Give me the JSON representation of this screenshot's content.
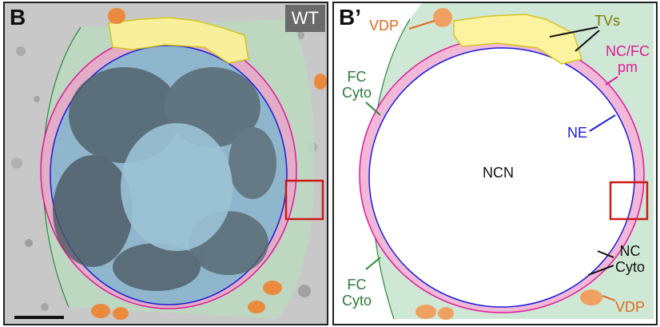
{
  "panels": {
    "left": {
      "label": "B",
      "badge": "WT"
    },
    "right": {
      "label": "B’",
      "labels": {
        "vdp_top": "VDP",
        "tvs": "TVs",
        "ncfc_pm_line1": "NC/FC",
        "ncfc_pm_line2": "pm",
        "fc_cyto_top_line1": "FC",
        "fc_cyto_top_line2": "Cyto",
        "ne": "NE",
        "ncn": "NCN",
        "nc_cyto_line1": "NC",
        "nc_cyto_line2": "Cyto",
        "fc_cyto_bottom_line1": "FC",
        "fc_cyto_bottom_line2": "Cyto",
        "vdp_bottom": "VDP"
      }
    }
  },
  "colors": {
    "fc_cyto": "#cfe8d6",
    "nc_cyto": "#f2b8d8",
    "nucleus_em": "#8fb6cc",
    "tvs": "#fbf3a0",
    "vdp": "#f0a060",
    "ne_line": "#1a1adc",
    "pm_line": "#e0189a",
    "fc_line": "#2a8a3a",
    "callout_box": "#cc1a1a",
    "label_orange": "#e06a1a",
    "label_olive": "#7a7a00",
    "label_magenta": "#e0189a",
    "label_green": "#2a7a3a",
    "label_blue": "#1a1adc"
  }
}
